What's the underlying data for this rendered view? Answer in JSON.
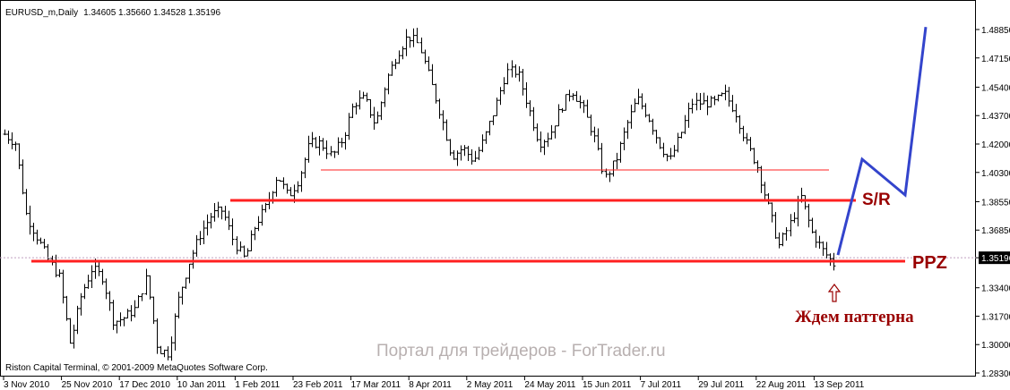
{
  "header": {
    "symbol": "EURUSD_m,Daily",
    "ohlc": "1.34605 1.35660 1.34528 1.35196"
  },
  "footer": {
    "copyright": "Riston Capital Terminal, © 2001-2009 MetaQuotes Software Corp."
  },
  "watermark": "Портал для трейдеров - ForTrader.ru",
  "colors": {
    "bars": "#000000",
    "levels": "#ff0000",
    "projection": "#3344cc",
    "annotation": "#990000",
    "current_price_bg": "#000000"
  },
  "chart_data": {
    "type": "ohlc",
    "title": "EURUSD_m,Daily",
    "ylim": [
      1.2775,
      1.4985
    ],
    "current_price": "1.35196",
    "y_ticks": [
      "1.48850",
      "1.47150",
      "1.45400",
      "1.43700",
      "1.42000",
      "1.40300",
      "1.38550",
      "1.36850",
      "1.35196",
      "1.33400",
      "1.31700",
      "1.30000",
      "1.28300"
    ],
    "x_ticks": [
      "3 Nov 2010",
      "25 Nov 2010",
      "17 Dec 2010",
      "10 Jan 2011",
      "1 Feb 2011",
      "23 Feb 2011",
      "17 Mar 2011",
      "8 Apr 2011",
      "2 May 2011",
      "24 May 2011",
      "15 Jun 2011",
      "7 Jul 2011",
      "29 Jul 2011",
      "22 Aug 2011",
      "13 Sep 2011"
    ],
    "close_path": [
      1.4259,
      1.4205,
      1.3777,
      1.3643,
      1.3509,
      1.3402,
      1.3001,
      1.3295,
      1.3456,
      1.3402,
      1.3135,
      1.3162,
      1.3215,
      1.3402,
      1.2974,
      1.2948,
      1.3295,
      1.3509,
      1.367,
      1.3777,
      1.3804,
      1.3616,
      1.3509,
      1.3723,
      1.383,
      1.4018,
      1.3884,
      1.3991,
      1.4205,
      1.4205,
      1.4125,
      1.4232,
      1.4446,
      1.4472,
      1.4312,
      1.4579,
      1.474,
      1.4847,
      1.4793,
      1.4579,
      1.4365,
      1.4125,
      1.4178,
      1.4098,
      1.4232,
      1.4419,
      1.4633,
      1.4633,
      1.4419,
      1.4205,
      1.4259,
      1.4419,
      1.4526,
      1.4419,
      1.4259,
      1.3991,
      1.4098,
      1.4312,
      1.4472,
      1.4365,
      1.4205,
      1.4098,
      1.4259,
      1.4446,
      1.4446,
      1.4446,
      1.4499,
      1.4392,
      1.4205,
      1.4071,
      1.383,
      1.359,
      1.3723,
      1.3884,
      1.367,
      1.3563,
      1.3483
    ],
    "levels": [
      {
        "name": "resistance-thin",
        "price": 1.4045
      },
      {
        "name": "sr-level",
        "price": 1.3863
      },
      {
        "name": "ppz-level",
        "price": 1.3499
      }
    ],
    "projection": [
      1.3536,
      1.4109,
      1.3895,
      1.49
    ],
    "annotations": {
      "sr": "S/R",
      "ppz": "PPZ",
      "wait": "Ждем паттерна"
    }
  }
}
